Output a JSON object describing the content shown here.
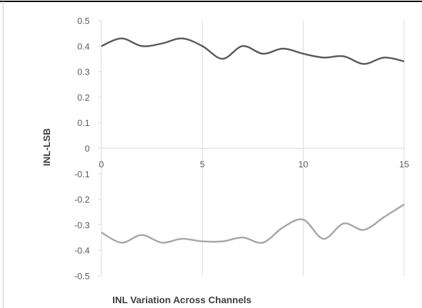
{
  "chart_data": {
    "type": "line",
    "title": "",
    "xlabel": "INL Variation  Across Channels",
    "ylabel": "INL-LSB",
    "xlim": [
      0,
      15
    ],
    "ylim": [
      -0.5,
      0.5
    ],
    "x_ticks": [
      0,
      5,
      10,
      15
    ],
    "y_ticks": [
      0.5,
      0.4,
      0.3,
      0.2,
      0.1,
      0,
      -0.1,
      -0.2,
      -0.3,
      -0.4,
      -0.5
    ],
    "grid": "vertical",
    "legend": "none",
    "series": [
      {
        "name": "",
        "color": "#595959",
        "x": [
          0,
          1,
          2,
          3,
          4,
          5,
          6,
          7,
          8,
          9,
          10,
          11,
          12,
          13,
          14,
          15
        ],
        "values": [
          0.4,
          0.43,
          0.4,
          0.41,
          0.43,
          0.4,
          0.35,
          0.4,
          0.37,
          0.39,
          0.37,
          0.355,
          0.36,
          0.33,
          0.355,
          0.34
        ]
      },
      {
        "name": "",
        "color": "#a6a6a6",
        "x": [
          0,
          1,
          2,
          3,
          4,
          5,
          6,
          7,
          8,
          9,
          10,
          11,
          12,
          13,
          14,
          15
        ],
        "values": [
          -0.33,
          -0.37,
          -0.34,
          -0.37,
          -0.355,
          -0.365,
          -0.365,
          -0.35,
          -0.37,
          -0.31,
          -0.28,
          -0.355,
          -0.295,
          -0.32,
          -0.27,
          -0.22
        ]
      }
    ]
  }
}
